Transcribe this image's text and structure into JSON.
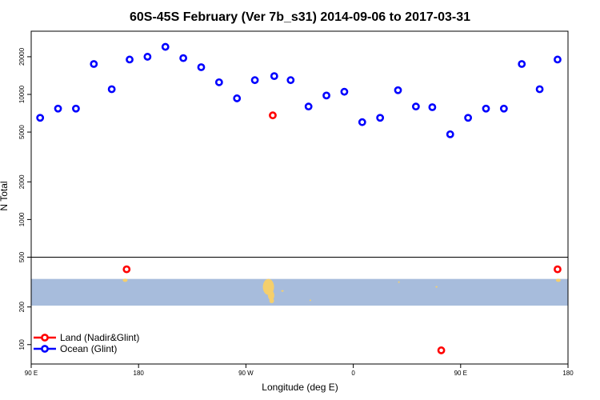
{
  "chart_data": {
    "type": "scatter",
    "title": "60S-45S February (Ver 7b_s31)   2014-09-06 to 2017-03-31",
    "xlabel": "Longitude (deg E)",
    "ylabel": "N Total",
    "xlim": [
      90,
      450
    ],
    "ylim": [
      70,
      32000
    ],
    "y_scale": "log",
    "x_ticks": [
      {
        "value": 90,
        "label": "90 E"
      },
      {
        "value": 162,
        "label": "180"
      },
      {
        "value": 234,
        "label": "90 W"
      },
      {
        "value": 306,
        "label": "0"
      },
      {
        "value": 378,
        "label": "90 E"
      },
      {
        "value": 450,
        "label": "180"
      }
    ],
    "y_ticks": [
      {
        "value": 100,
        "label": "100"
      },
      {
        "value": 200,
        "label": "200"
      },
      {
        "value": 500,
        "label": "500"
      },
      {
        "value": 1000,
        "label": "1000"
      },
      {
        "value": 2000,
        "label": "2000"
      },
      {
        "value": 5000,
        "label": "5000"
      },
      {
        "value": 10000,
        "label": "10000"
      },
      {
        "value": 20000,
        "label": "20000"
      }
    ],
    "divider_y": 500,
    "map_band": {
      "y_bottom": 205,
      "y_top": 335,
      "color": "#a7bcdc",
      "land_color": "#f5cf6c"
    },
    "legend": {
      "position": "bottom-left"
    },
    "series": [
      {
        "name": "Land (Nadir&Glint)",
        "color": "#ff0000",
        "points": [
          {
            "x": 154,
            "y": 400
          },
          {
            "x": 252,
            "y": 6800
          },
          {
            "x": 365,
            "y": 90
          },
          {
            "x": 443,
            "y": 400
          }
        ]
      },
      {
        "name": "Ocean (Glint)",
        "color": "#0000ff",
        "points": [
          {
            "x": 96,
            "y": 6500
          },
          {
            "x": 108,
            "y": 7700
          },
          {
            "x": 120,
            "y": 7700
          },
          {
            "x": 132,
            "y": 17500
          },
          {
            "x": 144,
            "y": 11000
          },
          {
            "x": 156,
            "y": 19000
          },
          {
            "x": 168,
            "y": 20000
          },
          {
            "x": 180,
            "y": 24000
          },
          {
            "x": 192,
            "y": 19500
          },
          {
            "x": 204,
            "y": 16500
          },
          {
            "x": 216,
            "y": 12500
          },
          {
            "x": 228,
            "y": 9300
          },
          {
            "x": 240,
            "y": 13000
          },
          {
            "x": 253,
            "y": 14000
          },
          {
            "x": 264,
            "y": 13000
          },
          {
            "x": 276,
            "y": 8000
          },
          {
            "x": 288,
            "y": 9800
          },
          {
            "x": 300,
            "y": 10500
          },
          {
            "x": 312,
            "y": 6000
          },
          {
            "x": 324,
            "y": 6500
          },
          {
            "x": 336,
            "y": 10800
          },
          {
            "x": 348,
            "y": 8000
          },
          {
            "x": 359,
            "y": 7900
          },
          {
            "x": 371,
            "y": 4800
          },
          {
            "x": 383,
            "y": 6500
          },
          {
            "x": 395,
            "y": 7700
          },
          {
            "x": 407,
            "y": 7700
          },
          {
            "x": 419,
            "y": 17500
          },
          {
            "x": 431,
            "y": 11000
          },
          {
            "x": 443,
            "y": 19000
          }
        ]
      }
    ]
  }
}
